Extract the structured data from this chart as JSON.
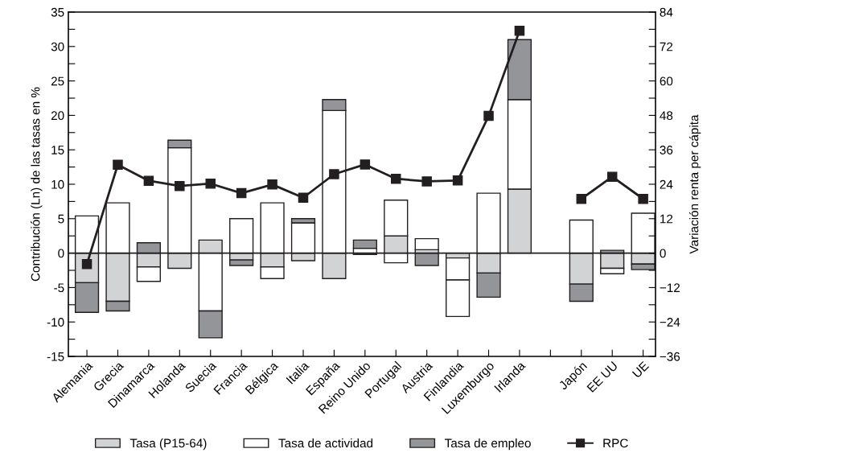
{
  "chart_data": {
    "type": "bar",
    "stacked": true,
    "categories": [
      "Alemania",
      "Grecia",
      "Dinamarca",
      "Holanda",
      "Suecia",
      "Francia",
      "Bélgica",
      "Italia",
      "España",
      "Reino Unido",
      "Portugal",
      "Austria",
      "Finlandia",
      "Luxemburgo",
      "Irlanda",
      null,
      "Japón",
      "EE UU",
      "UE"
    ],
    "ylabel": "Contribución (Ln) de las tasas en %",
    "y2label": "Variación renta per cápita",
    "ylim": [
      -15,
      35
    ],
    "yticks": [
      -15,
      {
        "value": -12.5,
        "label": null
      },
      -10,
      {
        "value": -7.5,
        "label": null
      },
      -5,
      {
        "value": -2.5,
        "label": null
      },
      0,
      {
        "value": 2.5,
        "label": null
      },
      5,
      {
        "value": 7.5,
        "label": null
      },
      10,
      {
        "value": 12.5,
        "label": null
      },
      15,
      {
        "value": 17.5,
        "label": null
      },
      20,
      {
        "value": 22.5,
        "label": null
      },
      25,
      {
        "value": 27.5,
        "label": null
      },
      30,
      {
        "value": 32.5,
        "label": null
      },
      35
    ],
    "y2lim": [
      -36,
      84
    ],
    "y2ticks": [
      {
        "value": -36,
        "label": "−36"
      },
      {
        "value": -30,
        "label": null
      },
      {
        "value": -24,
        "label": "−24"
      },
      {
        "value": -18,
        "label": null
      },
      {
        "value": -12,
        "label": "−12"
      },
      {
        "value": -6,
        "label": null
      },
      0,
      {
        "value": 6,
        "label": null
      },
      12,
      {
        "value": 18,
        "label": null
      },
      24,
      {
        "value": 30,
        "label": null
      },
      36,
      {
        "value": 42,
        "label": null
      },
      48,
      {
        "value": 54,
        "label": null
      },
      60,
      {
        "value": 66,
        "label": null
      },
      72,
      {
        "value": 78,
        "label": null
      },
      84
    ],
    "ref_lines": [
      {
        "axis": "y",
        "value": 0,
        "color": "#231f20"
      }
    ],
    "legend": "bottom",
    "grid": false,
    "series": [
      {
        "name": "Tasa (P15-64)",
        "color": "#d1d3d4",
        "values": [
          -4.3,
          -7.0,
          -2.0,
          -2.2,
          1.9,
          -1.0,
          -2.0,
          -1.1,
          -3.7,
          -0.2,
          2.5,
          0.5,
          -0.7,
          -2.9,
          9.3,
          null,
          -4.5,
          -2.2,
          -1.6
        ]
      },
      {
        "name": "Tasa de actividad",
        "color": "#ffffff",
        "values": [
          5.4,
          7.3,
          -2.1,
          15.3,
          -8.4,
          5.0,
          7.3,
          4.4,
          20.7,
          0.7,
          5.2,
          1.6,
          -3.2,
          8.7,
          13.0,
          null,
          4.8,
          -0.8,
          5.8
        ]
      },
      {
        "name": "Tasa de empleo",
        "color": "#939598",
        "colors": [
          "#939598",
          "#939598",
          "#939598",
          "#939598",
          "#939598",
          "#939598",
          "#ffffff",
          "#939598",
          "#939598",
          "#939598",
          "#ffffff",
          "#939598",
          "#ffffff",
          "#939598",
          "#939598",
          "#939598",
          "#939598",
          "#939598",
          "#939598"
        ],
        "values": [
          -4.3,
          -1.4,
          1.5,
          1.1,
          -3.9,
          -0.8,
          -1.7,
          0.6,
          1.6,
          1.2,
          -1.4,
          -1.8,
          -5.3,
          -3.5,
          8.7,
          null,
          -2.5,
          0.4,
          -0.8
        ]
      },
      {
        "name": "RPC",
        "type": "line",
        "axis": "y2",
        "color": "#231f20",
        "marker": "square",
        "values": [
          -3.8,
          30.8,
          25.2,
          23.4,
          24.2,
          20.9,
          23.9,
          19.3,
          27.5,
          30.9,
          25.9,
          25.0,
          25.3,
          47.8,
          77.5,
          null,
          18.9,
          26.6,
          18.9
        ]
      }
    ]
  }
}
